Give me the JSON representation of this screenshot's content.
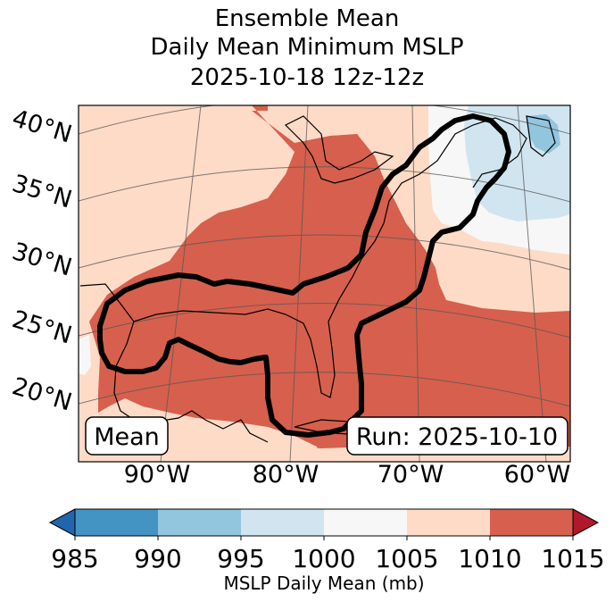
{
  "title": {
    "line1": "Ensemble Mean",
    "line2": "Daily Mean Minimum MSLP",
    "line3": "2025-10-18 12z-12z"
  },
  "map": {
    "lat_labels": [
      "40°N",
      "35°N",
      "30°N",
      "25°N",
      "20°N"
    ],
    "lon_labels": [
      "90°W",
      "80°W",
      "70°W",
      "60°W"
    ],
    "mean_label": "Mean",
    "run_label": "Run: 2025-10-10"
  },
  "colorbar": {
    "ticks": [
      "985",
      "990",
      "995",
      "1000",
      "1005",
      "1010",
      "1015"
    ],
    "label": "MSLP Daily Mean (mb)",
    "colors": [
      "#2166ac",
      "#4393c3",
      "#92c5de",
      "#d1e5f0",
      "#f7f7f7",
      "#fddbc7",
      "#d6604d",
      "#b2182b"
    ]
  }
}
